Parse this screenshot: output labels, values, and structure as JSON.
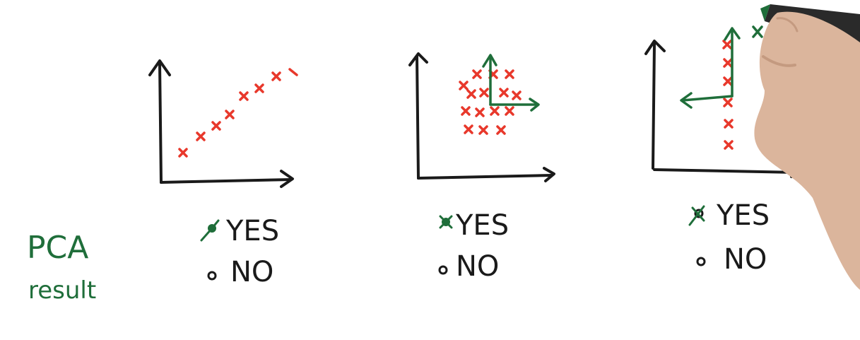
{
  "colors": {
    "ink": "#1a1a1a",
    "points": "#e8382b",
    "marker": "#1f6e3a",
    "skin": "#d9b39a",
    "pen": "#2a2a2a",
    "background": "#ffffff"
  },
  "side_label": {
    "line1": "PCA",
    "line2": "result"
  },
  "panels": [
    {
      "name": "diagonal-line",
      "options": [
        {
          "label": "YES",
          "selected": true
        },
        {
          "label": "NO",
          "selected": false
        }
      ]
    },
    {
      "name": "circular-cluster",
      "options": [
        {
          "label": "YES",
          "selected": true
        },
        {
          "label": "NO",
          "selected": false
        }
      ]
    },
    {
      "name": "vertical-line",
      "options": [
        {
          "label": "YES",
          "selected": true
        },
        {
          "label": "NO",
          "selected": false
        }
      ]
    }
  ],
  "icons": {
    "hand": "hand-holding-marker-icon",
    "check": "check-mark-icon"
  }
}
